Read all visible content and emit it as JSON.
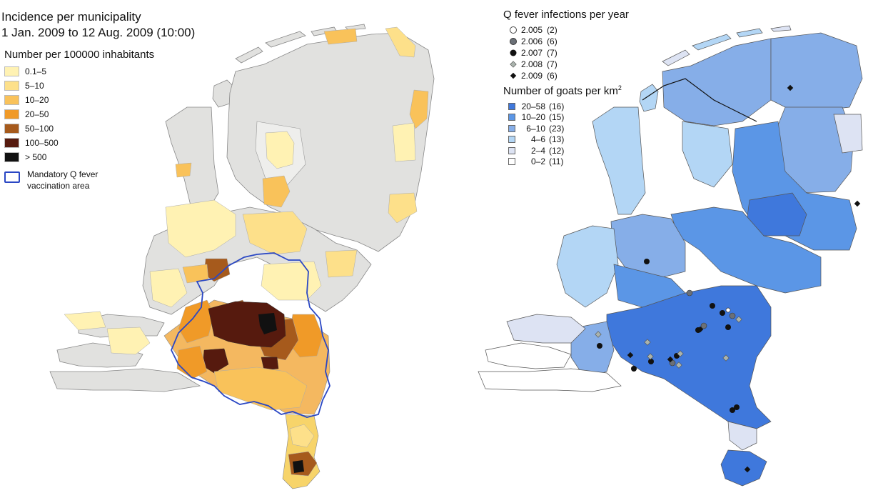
{
  "left_panel": {
    "title_line1": "Incidence per municipality",
    "title_line2": "1 Jan. 2009 to 12 Aug. 2009 (10:00)",
    "legend_title": "Number per 100000 inhabitants",
    "incidence_classes": [
      {
        "label": "0.1–5",
        "color": "#fff2b3"
      },
      {
        "label": "5–10",
        "color": "#fde08a"
      },
      {
        "label": "10–20",
        "color": "#f9c25a"
      },
      {
        "label": "20–50",
        "color": "#f09a28"
      },
      {
        "label": "50–100",
        "color": "#a65a1c"
      },
      {
        "label": "100–500",
        "color": "#561a0e"
      },
      {
        "label": "> 500",
        "color": "#111111"
      }
    ],
    "vaccination_label_line1": "Mandatory Q fever",
    "vaccination_label_line2": "vaccination area",
    "vaccination_color": "#2a47c4",
    "land_color": "#e1e1df"
  },
  "right_panel": {
    "infections_title": "Q fever infections per year",
    "infection_years": [
      {
        "label": "2.005",
        "count": "(2)",
        "symbol": "circle-white"
      },
      {
        "label": "2.006",
        "count": "(6)",
        "symbol": "circle-grey"
      },
      {
        "label": "2.007",
        "count": "(7)",
        "symbol": "circle-black"
      },
      {
        "label": "2.008",
        "count": "(7)",
        "symbol": "diamond-grey"
      },
      {
        "label": "2.009",
        "count": "(6)",
        "symbol": "diamond-black"
      }
    ],
    "goats_title": "Number of goats per km",
    "goats_title_sup": "2",
    "goat_classes": [
      {
        "label": "20–58",
        "count": "(16)",
        "color": "#3f78dc"
      },
      {
        "label": "10–20",
        "count": "(15)",
        "color": "#5b96e6"
      },
      {
        "label": "6–10",
        "count": "(23)",
        "color": "#86aee8"
      },
      {
        "label": "4–6",
        "count": "(13)",
        "color": "#b3d6f5"
      },
      {
        "label": "2–4",
        "count": "(12)",
        "color": "#dde3f3"
      },
      {
        "label": "0–2",
        "count": "(11)",
        "color": "#ffffff"
      }
    ]
  }
}
